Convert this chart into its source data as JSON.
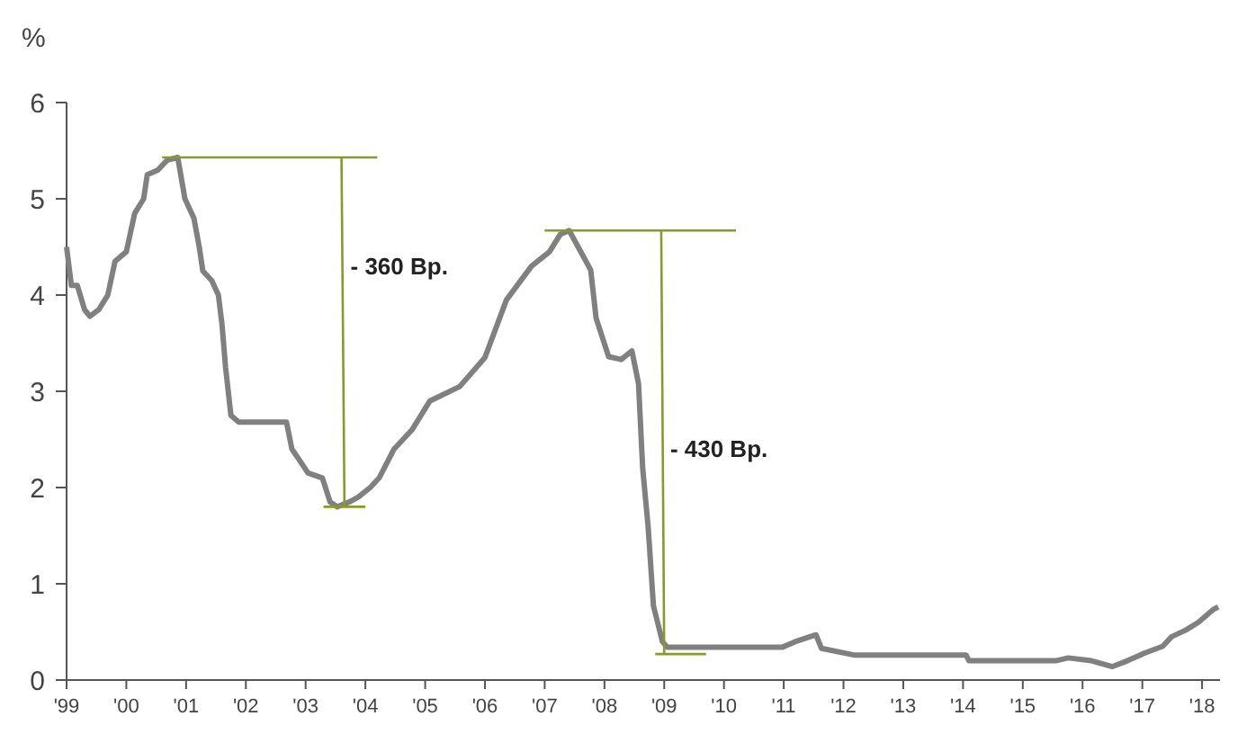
{
  "chart_data": {
    "type": "line",
    "ylabel": "%",
    "xlim": [
      1999,
      2018.3
    ],
    "ylim": [
      0,
      6
    ],
    "yticks": [
      0,
      1,
      2,
      3,
      4,
      5,
      6
    ],
    "xticks": [
      {
        "value": 1999,
        "label": "'99"
      },
      {
        "value": 2000,
        "label": "'00"
      },
      {
        "value": 2001,
        "label": "'01"
      },
      {
        "value": 2002,
        "label": "'02"
      },
      {
        "value": 2003,
        "label": "'03"
      },
      {
        "value": 2004,
        "label": "'04"
      },
      {
        "value": 2005,
        "label": "'05"
      },
      {
        "value": 2006,
        "label": "'06"
      },
      {
        "value": 2007,
        "label": "'07"
      },
      {
        "value": 2008,
        "label": "'08"
      },
      {
        "value": 2009,
        "label": "'09"
      },
      {
        "value": 2010,
        "label": "'10"
      },
      {
        "value": 2011,
        "label": "'11"
      },
      {
        "value": 2012,
        "label": "'12"
      },
      {
        "value": 2013,
        "label": "'13"
      },
      {
        "value": 2014,
        "label": "'14"
      },
      {
        "value": 2015,
        "label": "'15"
      },
      {
        "value": 2016,
        "label": "'16"
      },
      {
        "value": 2017,
        "label": "'17"
      },
      {
        "value": 2018,
        "label": "'18"
      }
    ],
    "grid": false,
    "marker": "none",
    "line_style": "solid",
    "series": [
      {
        "color": "#808080",
        "x": [
          1999,
          1999.08,
          1999.18,
          1999.3,
          1999.39,
          1999.54,
          1999.69,
          1999.81,
          2000,
          2000.07,
          2000.14,
          2000.29,
          2000.35,
          2000.53,
          2000.68,
          2000.86,
          2000.98,
          2001.13,
          2001.22,
          2001.28,
          2001.43,
          2001.54,
          2001.6,
          2001.66,
          2001.75,
          2001.88,
          2002.68,
          2002.77,
          2002.88,
          2003.04,
          2003.28,
          2003.41,
          2003.53,
          2003.73,
          2003.88,
          2004.08,
          2004.23,
          2004.48,
          2004.78,
          2005.08,
          2005.58,
          2006,
          2006.36,
          2006.78,
          2007.08,
          2007.26,
          2007.41,
          2007.56,
          2007.77,
          2007.86,
          2008.07,
          2008.28,
          2008.46,
          2008.57,
          2008.64,
          2008.73,
          2008.82,
          2008.97,
          2009.05,
          2010.97,
          2011.2,
          2011.54,
          2011.63,
          2012.17,
          2014.05,
          2014.1,
          2015.55,
          2015.76,
          2016.15,
          2016.5,
          2016.75,
          2017.04,
          2017.34,
          2017.49,
          2017.73,
          2017.94,
          2018.18,
          2018.27
        ],
        "values": [
          4.5,
          4.1,
          4.1,
          3.85,
          3.78,
          3.85,
          4.0,
          4.35,
          4.45,
          4.65,
          4.85,
          5.0,
          5.25,
          5.3,
          5.4,
          5.43,
          5.0,
          4.8,
          4.5,
          4.25,
          4.15,
          4.0,
          3.7,
          3.25,
          2.75,
          2.68,
          2.68,
          2.4,
          2.3,
          2.15,
          2.1,
          1.85,
          1.8,
          1.85,
          1.9,
          2.0,
          2.1,
          2.4,
          2.6,
          2.9,
          3.05,
          3.35,
          3.95,
          4.3,
          4.45,
          4.63,
          4.67,
          4.5,
          4.26,
          3.76,
          3.36,
          3.33,
          3.42,
          3.08,
          2.2,
          1.6,
          0.77,
          0.4,
          0.34,
          0.34,
          0.4,
          0.47,
          0.33,
          0.26,
          0.26,
          0.2,
          0.2,
          0.23,
          0.2,
          0.14,
          0.2,
          0.28,
          0.35,
          0.45,
          0.52,
          0.6,
          0.73,
          0.76
        ]
      },
      {
        "color": "#8a9a2a",
        "x": [
          2000.6,
          2004.2
        ],
        "values": [
          5.43,
          5.43
        ]
      },
      {
        "color": "#8a9a2a",
        "x": [
          2003.6,
          2003.65
        ],
        "values": [
          5.43,
          1.8
        ]
      },
      {
        "color": "#8a9a2a",
        "x": [
          2003.3,
          2004.0
        ],
        "values": [
          1.8,
          1.8
        ]
      },
      {
        "color": "#8a9a2a",
        "x": [
          2007.0,
          2010.2
        ],
        "values": [
          4.67,
          4.67
        ]
      },
      {
        "color": "#8a9a2a",
        "x": [
          2008.95,
          2009.0
        ],
        "values": [
          4.67,
          0.27
        ]
      },
      {
        "color": "#8a9a2a",
        "x": [
          2008.85,
          2009.7
        ],
        "values": [
          0.27,
          0.27
        ]
      }
    ],
    "annotations": [
      {
        "text": "- 360 Bp.",
        "x": 2003.75,
        "y": 4.3
      },
      {
        "text": "- 430 Bp.",
        "x": 2009.1,
        "y": 2.4
      }
    ]
  }
}
